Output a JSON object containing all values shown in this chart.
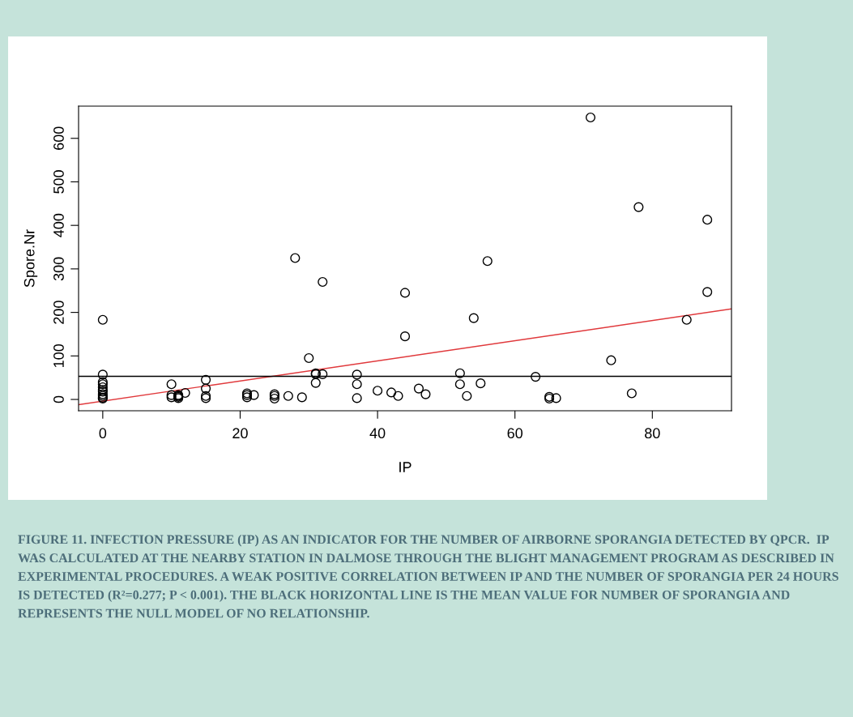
{
  "chart_data": {
    "type": "scatter",
    "xlabel": "IP",
    "ylabel": "Spore.Nr",
    "xlim": [
      -3.52,
      91.52
    ],
    "ylim": [
      -26,
      674
    ],
    "xticks": [
      0,
      20,
      40,
      60,
      80
    ],
    "yticks": [
      0,
      100,
      200,
      300,
      400,
      500,
      600
    ],
    "grid": false,
    "marker": "circle",
    "series": [
      {
        "color": "#000000",
        "x": [
          0,
          0,
          0,
          0,
          0,
          0,
          0,
          0,
          0,
          0,
          0,
          10,
          10,
          10,
          11,
          11,
          11,
          11,
          12,
          15,
          15,
          15,
          15,
          21,
          21,
          21,
          22,
          25,
          25,
          25,
          27,
          29,
          28,
          30,
          31,
          31,
          31,
          32,
          32,
          37,
          37,
          37,
          40,
          42,
          43,
          44,
          44,
          46,
          47,
          52,
          52,
          53,
          54,
          55,
          56,
          63,
          65,
          65,
          66,
          71,
          74,
          77,
          78,
          85,
          88,
          88
        ],
        "values": [
          183,
          57,
          40,
          35,
          28,
          22,
          18,
          12,
          8,
          4,
          2,
          35,
          10,
          5,
          10,
          6,
          3,
          8,
          15,
          45,
          25,
          8,
          3,
          14,
          10,
          5,
          10,
          12,
          8,
          2,
          8,
          5,
          325,
          95,
          60,
          58,
          38,
          270,
          58,
          57,
          35,
          3,
          20,
          16,
          8,
          245,
          145,
          25,
          12,
          60,
          35,
          8,
          187,
          37,
          318,
          52,
          6,
          2,
          3,
          648,
          90,
          14,
          442,
          183,
          413,
          247
        ]
      },
      {
        "type": "line",
        "color": "#e0383b",
        "line_style": "solid",
        "marker": "none",
        "x": [
          -3.52,
          91.52
        ],
        "values": [
          -12,
          208
        ]
      }
    ],
    "ref_lines": [
      {
        "axis": "y",
        "value": 53,
        "color": "#000000",
        "line_style": "solid"
      }
    ],
    "annotations": [
      "FIGURE 11. INFECTION PRESSURE (IP) AS AN INDICATOR FOR THE NUMBER OF AIRBORNE SPORANGIA DETECTED BY QPCR.  IP WAS CALCULATED AT THE NEARBY STATION IN DALMOSE THROUGH THE BLIGHT MANAGEMENT PROGRAM AS DESCRIBED IN EXPERIMENTAL PROCEDURES. A WEAK POSITIVE CORRELATION BETWEEN IP AND THE NUMBER OF SPORANGIA PER 24 HOURS IS DETECTED (R²=0.277; P < 0.001). THE BLACK HORIZONTAL LINE IS THE MEAN VALUE FOR NUMBER OF SPORANGIA AND REPRESENTS THE NULL MODEL OF NO RELATIONSHIP."
    ]
  }
}
